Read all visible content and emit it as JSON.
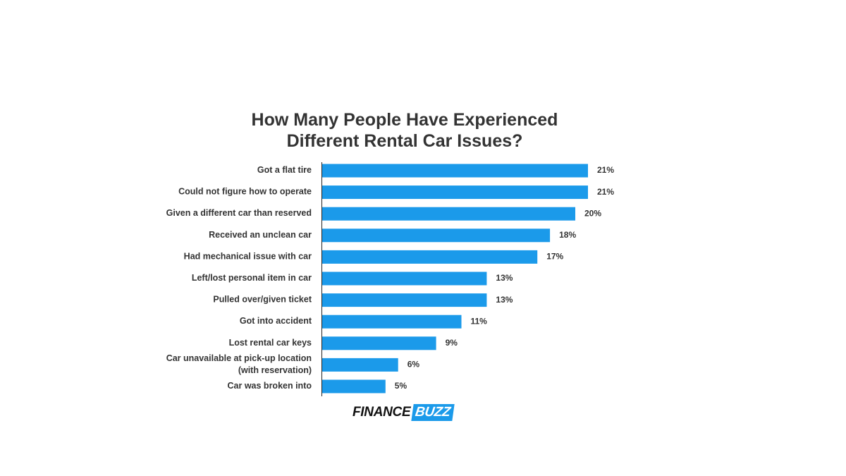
{
  "chart_data": {
    "type": "bar",
    "orientation": "horizontal",
    "title_lines": [
      "How Many People Have Experienced",
      "Different Rental Car Issues?"
    ],
    "categories": [
      "Got a flat tire",
      "Could not figure how to operate",
      "Given a different car than reserved",
      "Received an unclean car",
      "Had mechanical issue with car",
      "Left/lost personal item in car",
      "Pulled over/given ticket",
      "Got into accident",
      "Lost rental car keys",
      "Car unavailable at pick-up location\n(with reservation)",
      "Car was broken into"
    ],
    "values": [
      21,
      21,
      20,
      18,
      17,
      13,
      13,
      11,
      9,
      6,
      5
    ],
    "value_labels": [
      "21%",
      "21%",
      "20%",
      "18%",
      "17%",
      "13%",
      "13%",
      "11%",
      "9%",
      "6%",
      "5%"
    ],
    "xlim": [
      0,
      21
    ],
    "bar_color": "#1b9aea",
    "grid": false,
    "legend": "none"
  },
  "logo": {
    "part1": "FINANCE",
    "part2": "BUZZ"
  }
}
